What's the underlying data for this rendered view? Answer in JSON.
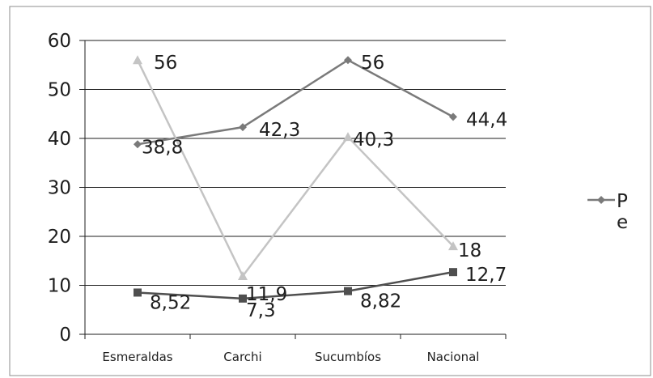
{
  "chart_data": {
    "type": "line",
    "categories": [
      "Esmeraldas",
      "Carchi",
      "Sucumbíos",
      "Nacional"
    ],
    "ylim": [
      0,
      60
    ],
    "yticks": [
      0,
      10,
      20,
      30,
      40,
      50,
      60
    ],
    "grid": true,
    "legend_position": "right",
    "legend": {
      "line1": "P",
      "line2": "e"
    },
    "series": [
      {
        "values": [
          38.8,
          42.3,
          56,
          44.4
        ],
        "labels": [
          "38,8",
          "42,3",
          "56",
          "44,4"
        ],
        "color": "#7a7a7a",
        "marker": "diamond"
      },
      {
        "values": [
          56,
          11.9,
          40.3,
          18
        ],
        "labels": [
          "56",
          "11,9",
          "40,3",
          "18"
        ],
        "color": "#c4c4c4",
        "marker": "triangle"
      },
      {
        "values": [
          8.52,
          7.3,
          8.82,
          12.7
        ],
        "labels": [
          "8,52",
          "7,3",
          "8,82",
          "12,7"
        ],
        "color": "#4f4f4f",
        "marker": "square"
      }
    ]
  }
}
